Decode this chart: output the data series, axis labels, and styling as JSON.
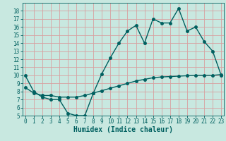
{
  "title": "",
  "xlabel": "Humidex (Indice chaleur)",
  "bg_color": "#c8e8e0",
  "line_color": "#006060",
  "grid_color": "#d8a0a0",
  "series1_x": [
    0,
    1,
    2,
    3,
    4,
    5,
    6,
    7,
    8,
    9,
    10,
    11,
    12,
    13,
    14,
    15,
    16,
    17,
    18,
    19,
    20,
    21,
    22,
    23
  ],
  "series1_y": [
    10,
    8,
    7.3,
    7,
    7,
    5.3,
    5,
    5,
    7.8,
    10.2,
    12.2,
    14.0,
    15.5,
    16.2,
    14.0,
    17.0,
    16.5,
    16.5,
    18.3,
    15.5,
    16.0,
    14.2,
    13.0,
    10.0
  ],
  "series2_x": [
    0,
    1,
    2,
    3,
    4,
    5,
    6,
    7,
    8,
    9,
    10,
    11,
    12,
    13,
    14,
    15,
    16,
    17,
    18,
    19,
    20,
    21,
    22,
    23
  ],
  "series2_y": [
    8.5,
    7.8,
    7.5,
    7.5,
    7.3,
    7.3,
    7.3,
    7.5,
    7.8,
    8.1,
    8.4,
    8.7,
    9.0,
    9.3,
    9.5,
    9.7,
    9.8,
    9.85,
    9.9,
    9.95,
    10.0,
    10.0,
    10.0,
    10.1
  ],
  "xlim": [
    0,
    23
  ],
  "ylim": [
    5,
    19
  ],
  "yticks": [
    5,
    6,
    7,
    8,
    9,
    10,
    11,
    12,
    13,
    14,
    15,
    16,
    17,
    18
  ],
  "xticks": [
    0,
    1,
    2,
    3,
    4,
    5,
    6,
    7,
    8,
    9,
    10,
    11,
    12,
    13,
    14,
    15,
    16,
    17,
    18,
    19,
    20,
    21,
    22,
    23
  ],
  "marker_size": 2.5,
  "line_width": 1.0,
  "font_size_label": 7,
  "font_size_tick": 5.5
}
